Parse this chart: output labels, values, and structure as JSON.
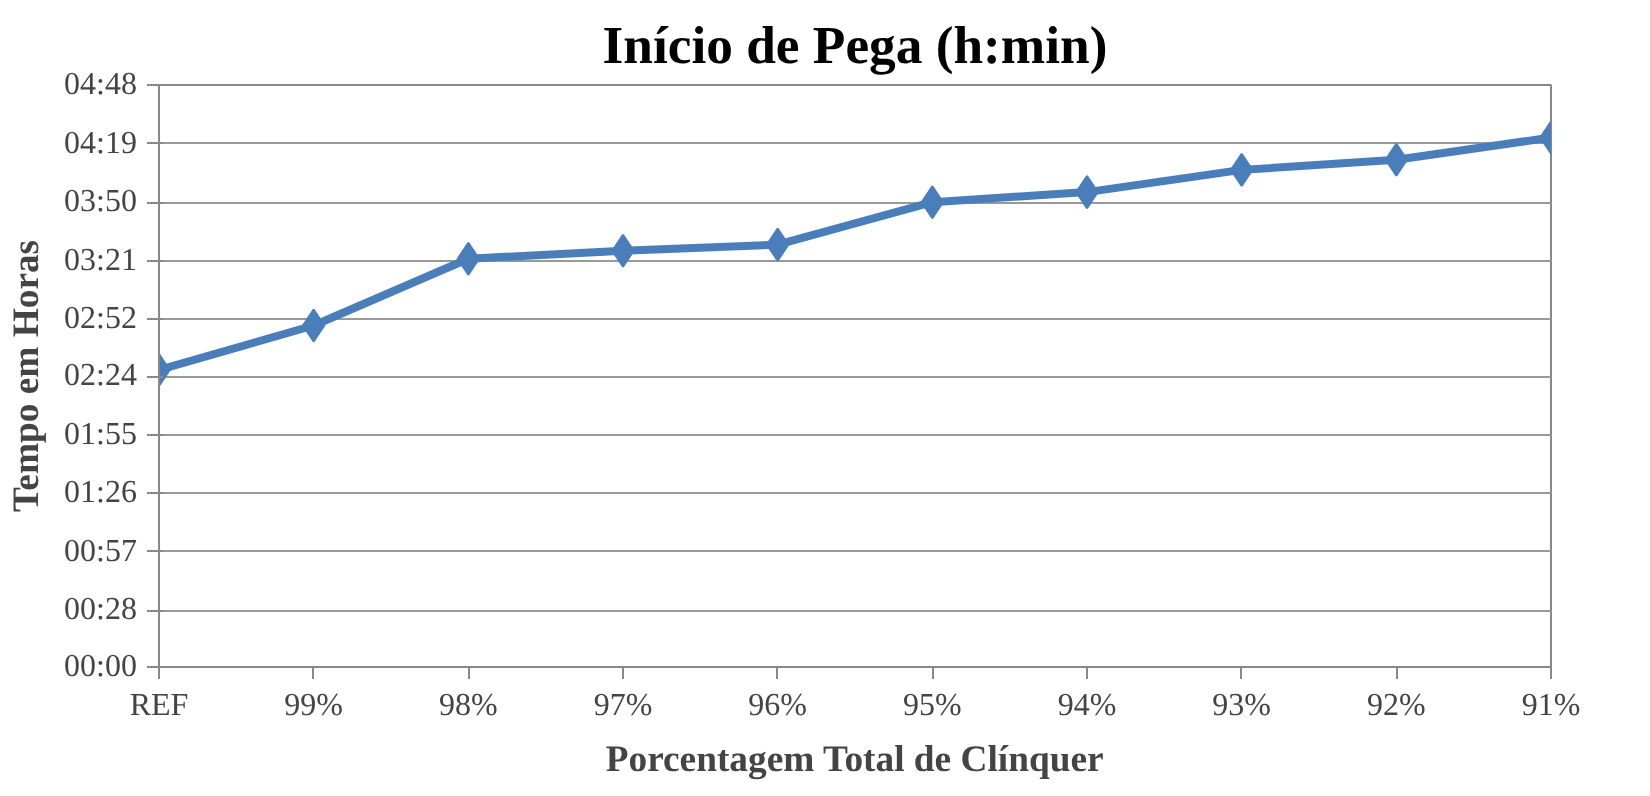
{
  "chart_data": {
    "type": "line",
    "title": "Início de Pega (h:min)",
    "xlabel": "Porcentagem Total de Clínquer",
    "ylabel": "Tempo em Horas",
    "categories": [
      "REF",
      "99%",
      "98%",
      "97%",
      "96%",
      "95%",
      "94%",
      "93%",
      "92%",
      "91%"
    ],
    "series": [
      {
        "color": "#4a7ebb",
        "values": [
          147,
          169,
          202,
          206,
          209,
          230,
          235,
          246,
          251,
          262
        ]
      }
    ],
    "ylim": [
      0,
      288
    ],
    "yticks": [
      {
        "value": 0,
        "label": "00:00"
      },
      {
        "value": 28,
        "label": "00:28"
      },
      {
        "value": 57,
        "label": "00:57"
      },
      {
        "value": 86,
        "label": "01:26"
      },
      {
        "value": 115,
        "label": "01:55"
      },
      {
        "value": 144,
        "label": "02:24"
      },
      {
        "value": 172,
        "label": "02:52"
      },
      {
        "value": 201,
        "label": "03:21"
      },
      {
        "value": 230,
        "label": "03:50"
      },
      {
        "value": 259,
        "label": "04:19"
      },
      {
        "value": 288,
        "label": "04:48"
      }
    ],
    "grid": "y",
    "marker": "diamond",
    "line_style": "solid"
  }
}
